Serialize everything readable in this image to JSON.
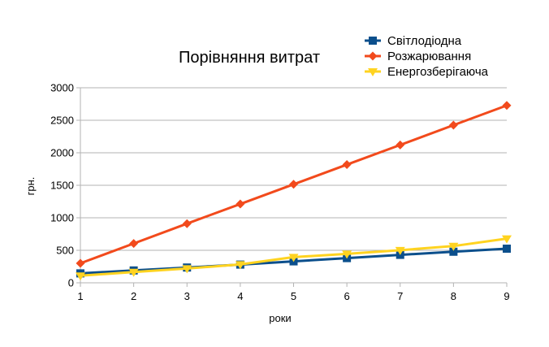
{
  "chart_data": {
    "type": "line",
    "title": "Порівняння витрат",
    "xlabel": "роки",
    "ylabel": "грн.",
    "x": [
      1,
      2,
      3,
      4,
      5,
      6,
      7,
      8,
      9
    ],
    "ylim": [
      0,
      3000
    ],
    "yticks": [
      0,
      500,
      1000,
      1500,
      2000,
      2500,
      3000
    ],
    "grid": "horizontal",
    "legend_position": "top-right",
    "series": [
      {
        "name": "Світлодіодна",
        "color": "#0b4f8c",
        "marker": "square",
        "values": [
          145,
          190,
          235,
          280,
          330,
          380,
          430,
          478,
          525
        ]
      },
      {
        "name": "Розжарювання",
        "color": "#f24a1c",
        "marker": "diamond",
        "values": [
          300,
          605,
          910,
          1212,
          1515,
          1818,
          2120,
          2425,
          2728
        ]
      },
      {
        "name": "Енергозберігаюча",
        "color": "#ffd320",
        "marker": "triangle-down",
        "values": [
          110,
          165,
          220,
          283,
          395,
          445,
          502,
          565,
          680
        ]
      }
    ]
  }
}
